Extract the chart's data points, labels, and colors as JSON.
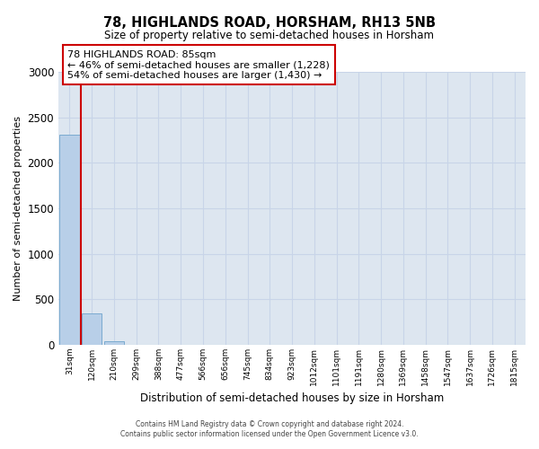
{
  "title": "78, HIGHLANDS ROAD, HORSHAM, RH13 5NB",
  "subtitle": "Size of property relative to semi-detached houses in Horsham",
  "xlabel": "Distribution of semi-detached houses by size in Horsham",
  "ylabel": "Number of semi-detached properties",
  "categories": [
    "31sqm",
    "120sqm",
    "210sqm",
    "299sqm",
    "388sqm",
    "477sqm",
    "566sqm",
    "656sqm",
    "745sqm",
    "834sqm",
    "923sqm",
    "1012sqm",
    "1101sqm",
    "1191sqm",
    "1280sqm",
    "1369sqm",
    "1458sqm",
    "1547sqm",
    "1637sqm",
    "1726sqm",
    "1815sqm"
  ],
  "values": [
    2310,
    340,
    40,
    0,
    0,
    0,
    0,
    0,
    0,
    0,
    0,
    0,
    0,
    0,
    0,
    0,
    0,
    0,
    0,
    0,
    0
  ],
  "bar_color": "#b8cfe8",
  "annotation_text": "78 HIGHLANDS ROAD: 85sqm\n← 46% of semi-detached houses are smaller (1,228)\n54% of semi-detached houses are larger (1,430) →",
  "annotation_box_color": "#ffffff",
  "annotation_box_edge": "#cc0000",
  "property_line_color": "#cc0000",
  "ylim": [
    0,
    3000
  ],
  "grid_color": "#c8d4e8",
  "background_color": "#dde6f0",
  "footer_line1": "Contains HM Land Registry data © Crown copyright and database right 2024.",
  "footer_line2": "Contains public sector information licensed under the Open Government Licence v3.0."
}
